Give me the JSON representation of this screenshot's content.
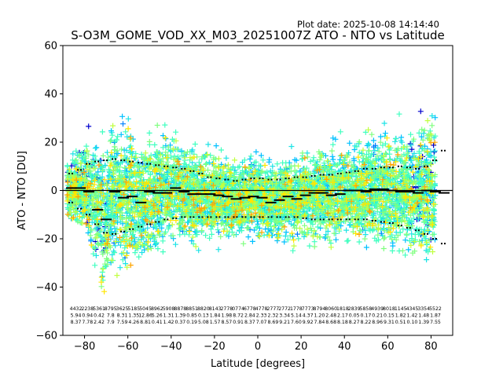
{
  "plot_date": "Plot date: 2025-10-08 14:14:40",
  "chart_data": {
    "type": "scatter",
    "title": "S-O3M_GOME_VOD_XX_M03_20251007Z ATO - NTO vs Latitude",
    "xlabel": "Latitude [degrees]",
    "ylabel": "ATO - NTO [DU]",
    "xlim": [
      -90,
      90
    ],
    "ylim": [
      -60,
      60
    ],
    "xticks": [
      -80,
      -60,
      -40,
      -20,
      0,
      20,
      40,
      60,
      80
    ],
    "yticks": [
      -60,
      -40,
      -20,
      0,
      20,
      40,
      60
    ],
    "xtick_labels": [
      "−80",
      "−60",
      "−40",
      "−20",
      "0",
      "20",
      "40",
      "60",
      "80"
    ],
    "ytick_labels": [
      "−60",
      "−40",
      "−20",
      "0",
      "20",
      "40",
      "60"
    ],
    "grid": false,
    "marker": "plus",
    "colors": [
      "#0000cd",
      "#0080ff",
      "#00c0ff",
      "#1de3e6",
      "#40ffc0",
      "#80ff80",
      "#c0ff40",
      "#ffe600",
      "#ffa500"
    ],
    "zero_line": 0,
    "zonal_mean": {
      "lat": [
        -86,
        -82,
        -78,
        -74,
        -70,
        -66,
        -62,
        -58,
        -54,
        -50,
        -46,
        -42,
        -38,
        -34,
        -30,
        -26,
        -22,
        -18,
        -14,
        -10,
        -6,
        -2,
        2,
        6,
        10,
        14,
        18,
        22,
        26,
        30,
        34,
        38,
        42,
        46,
        50,
        54,
        58,
        62,
        66,
        70,
        74,
        78,
        82,
        86
      ],
      "mean": [
        1.0,
        1.0,
        -0.5,
        -8.0,
        -12.0,
        -0.5,
        -3.0,
        -2.5,
        -5.0,
        -0.5,
        -1.0,
        -1.0,
        1.0,
        -0.5,
        -1.5,
        -1.5,
        -1.5,
        -2.0,
        -2.5,
        -3.5,
        -3.0,
        -2.5,
        -3.0,
        -5.0,
        -4.0,
        -2.5,
        -3.5,
        -2.0,
        -1.0,
        -1.0,
        -2.0,
        -1.5,
        0.0,
        0.0,
        -0.5,
        0.5,
        0.5,
        0.0,
        -0.5,
        -0.5,
        -1.0,
        0.0,
        -0.5,
        -1.0
      ],
      "upper": [
        7.0,
        8.5,
        11.0,
        12.0,
        12.5,
        13.0,
        12.5,
        12.0,
        11.5,
        11.0,
        10.5,
        10.0,
        9.5,
        9.0,
        8.0,
        7.0,
        5.5,
        5.0,
        4.5,
        4.0,
        4.5,
        5.0,
        5.0,
        4.5,
        4.5,
        5.0,
        5.5,
        5.5,
        6.0,
        6.5,
        6.5,
        7.0,
        7.5,
        8.0,
        9.0,
        9.0,
        9.5,
        9.5,
        10.0,
        9.5,
        9.0,
        10.0,
        12.5,
        16.5
      ],
      "lower": [
        -5.0,
        -7.5,
        -10.0,
        -14.0,
        -17.5,
        -18.0,
        -17.0,
        -16.0,
        -15.0,
        -14.0,
        -13.0,
        -12.0,
        -11.5,
        -11.0,
        -11.0,
        -11.0,
        -11.0,
        -11.0,
        -11.0,
        -11.0,
        -11.0,
        -11.0,
        -11.0,
        -11.0,
        -11.0,
        -11.0,
        -11.0,
        -11.5,
        -12.0,
        -12.0,
        -12.0,
        -12.0,
        -12.0,
        -12.0,
        -12.0,
        -12.5,
        -13.0,
        -13.5,
        -14.5,
        -15.5,
        -16.5,
        -18.0,
        -20.0,
        -22.0
      ]
    },
    "stats_rows": [
      [
        "4432",
        "2238",
        "5361",
        "8795",
        "3625",
        "5185",
        "5045",
        "8962",
        "5908",
        "8878",
        "8851",
        "8820",
        "8143",
        "2778",
        "0774",
        "6778",
        "4778",
        "2777",
        "2772",
        "1778",
        "7773",
        "8794",
        "8060",
        "1818",
        "2839",
        "5858",
        "4939",
        "8018",
        "1145",
        "4345",
        "3354",
        "5522"
      ],
      [
        "5.94",
        "0.94",
        "0.42",
        "7.8",
        "8.31",
        "1.35",
        "12.86",
        "5.26",
        "1.31",
        "1.39",
        "0.85",
        "0.13",
        "1.84",
        "1.98",
        "8.72",
        "2.84",
        "2.33",
        "2.32",
        "3.34",
        "5.14",
        "4.37",
        "1.20",
        "2.48",
        "2.17",
        "0.05",
        "0.17",
        "0.21",
        "0.15",
        "1.82",
        "1.42",
        "1.48",
        "1.87"
      ],
      [
        "8.37",
        "7.78",
        "2.42",
        "7.9",
        "7.59",
        "4.26",
        "8.81",
        "0.41",
        "1.42",
        "0.37",
        "0.19",
        "5.08",
        "1.57",
        "8.57",
        "0.91",
        "8.37",
        "7.07",
        "8.69",
        "9.21",
        "7.60",
        "9.92",
        "7.84",
        "8.68",
        "8.18",
        "8.27",
        "8.22",
        "8.96",
        "9.31",
        "0.51",
        "0.10",
        "1.39",
        "7.55"
      ]
    ]
  }
}
